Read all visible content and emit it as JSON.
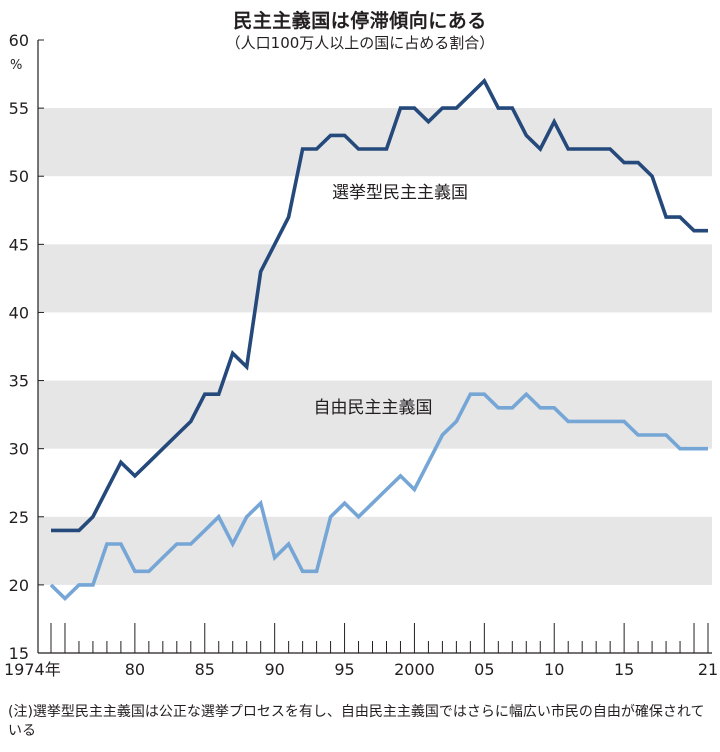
{
  "title": "民主主義国は停滞傾向にある",
  "subtitle": "（人口100万人以上の国に占める割合）",
  "unit": "%",
  "note": "(注)選挙型民主主義国は公正な選挙プロセスを有し、自由民主主義国ではさらに幅広い市民の自由が確保されている",
  "colors": {
    "dark": "#24497a",
    "light": "#75a6d5",
    "band": "#e6e6e7",
    "axis": "#231f20"
  },
  "chart_data": {
    "type": "line",
    "title": "民主主義国は停滞傾向にある",
    "subtitle": "（人口100万人以上の国に占める割合）",
    "xlabel": "",
    "ylabel": "%",
    "ylim": [
      15,
      60
    ],
    "xlim": [
      1974,
      2021
    ],
    "yticks": [
      15,
      20,
      25,
      30,
      35,
      40,
      45,
      50,
      55,
      60
    ],
    "xtick_years": [
      1974,
      1980,
      1985,
      1990,
      1995,
      2000,
      2005,
      2010,
      2015,
      2021
    ],
    "xtick_labels": [
      "1974年",
      "80",
      "85",
      "90",
      "95",
      "2000",
      "05",
      "10",
      "15",
      "21"
    ],
    "grid": "alternating horizontal bands",
    "x": [
      1974,
      1975,
      1976,
      1977,
      1978,
      1979,
      1980,
      1981,
      1982,
      1983,
      1984,
      1985,
      1986,
      1987,
      1988,
      1989,
      1990,
      1991,
      1992,
      1993,
      1994,
      1995,
      1996,
      1997,
      1998,
      1999,
      2000,
      2001,
      2002,
      2003,
      2004,
      2005,
      2006,
      2007,
      2008,
      2009,
      2010,
      2011,
      2012,
      2013,
      2014,
      2015,
      2016,
      2017,
      2018,
      2019,
      2020,
      2021
    ],
    "series": [
      {
        "name": "選挙型民主主義国",
        "color": "#24497a",
        "values": [
          24,
          24,
          24,
          25,
          27,
          29,
          28,
          29,
          30,
          31,
          32,
          34,
          34,
          37,
          36,
          43,
          45,
          47,
          52,
          52,
          53,
          53,
          52,
          52,
          52,
          55,
          55,
          54,
          55,
          55,
          56,
          57,
          55,
          55,
          53,
          52,
          54,
          52,
          52,
          52,
          52,
          51,
          51,
          50,
          47,
          47,
          46,
          46
        ]
      },
      {
        "name": "自由民主主義国",
        "color": "#75a6d5",
        "values": [
          20,
          19,
          20,
          20,
          23,
          23,
          21,
          21,
          22,
          23,
          23,
          24,
          25,
          23,
          25,
          26,
          22,
          23,
          21,
          21,
          25,
          26,
          25,
          26,
          27,
          28,
          27,
          29,
          31,
          32,
          34,
          34,
          33,
          33,
          34,
          33,
          33,
          32,
          32,
          32,
          32,
          32,
          31,
          31,
          31,
          30,
          30,
          30
        ]
      }
    ]
  }
}
